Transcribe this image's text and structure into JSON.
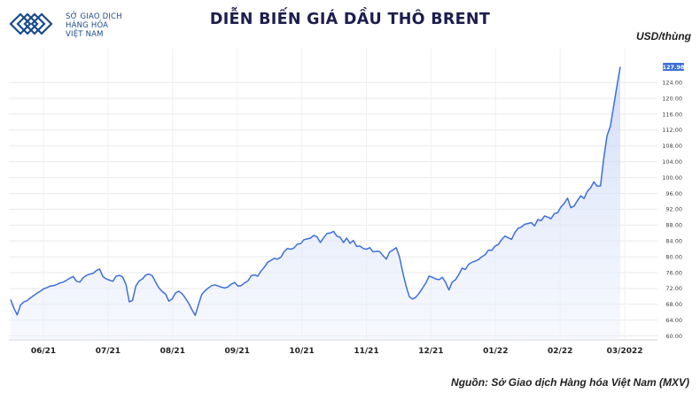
{
  "logo": {
    "icon_name": "mxv-diamond-logo",
    "line1": "SỞ GIAO DỊCH",
    "line2": "HÀNG HÓA",
    "line3": "VIỆT NAM",
    "color": "#1a4b8c"
  },
  "header": {
    "title": "DIỄN BIẾN GIÁ DẦU THÔ BRENT"
  },
  "footer": {
    "source": "Nguồn: Sở Giao dịch Hàng hóa Việt Nam (MXV)"
  },
  "chart_data": {
    "type": "area",
    "title": "DIỄN BIẾN GIÁ DẦU THÔ BRENT",
    "ylabel": "USD/thùng",
    "xlabel": "",
    "ylim": [
      59,
      133
    ],
    "y_ticks": [
      "60.00",
      "64.00",
      "68.00",
      "72.00",
      "76.00",
      "80.00",
      "84.00",
      "88.00",
      "92.00",
      "96.00",
      "100.00",
      "104.00",
      "108.00",
      "112.00",
      "116.00",
      "120.00",
      "124.00"
    ],
    "x_ticks": [
      "06/21",
      "07/21",
      "08/21",
      "09/21",
      "10/21",
      "11/21",
      "12/21",
      "01/22",
      "02/22",
      "03/2022"
    ],
    "last_value_label": "127.98",
    "grid": true,
    "line_color": "#3d6fd9",
    "fill_color": "#dbe4f8",
    "series": [
      {
        "values": [
          69.2,
          67.0,
          65.3,
          67.8,
          68.6,
          68.9,
          69.6,
          70.2,
          70.8,
          71.3,
          71.9,
          72.2,
          72.6,
          72.7,
          73.0,
          73.4,
          73.6,
          74.1,
          74.6,
          75.0,
          73.8,
          73.6,
          74.7,
          75.3,
          75.6,
          75.8,
          76.5,
          76.9,
          75.0,
          74.4,
          74.1,
          73.8,
          75.1,
          75.3,
          74.9,
          73.0,
          68.6,
          69.0,
          72.6,
          73.9,
          74.4,
          75.4,
          75.6,
          75.2,
          73.6,
          72.1,
          71.2,
          70.6,
          68.8,
          69.3,
          70.8,
          71.3,
          70.7,
          69.6,
          68.3,
          66.7,
          65.2,
          67.9,
          70.5,
          71.4,
          72.1,
          72.7,
          72.9,
          72.6,
          72.3,
          72.1,
          72.4,
          73.1,
          73.5,
          72.6,
          72.7,
          73.4,
          73.9,
          75.2,
          75.4,
          75.1,
          76.4,
          77.4,
          78.6,
          79.1,
          79.6,
          79.4,
          79.9,
          81.3,
          82.1,
          81.9,
          82.2,
          83.2,
          83.3,
          84.3,
          84.5,
          84.7,
          85.4,
          85.0,
          83.6,
          84.8,
          85.9,
          86.0,
          86.4,
          85.2,
          84.9,
          83.6,
          84.7,
          83.4,
          84.1,
          82.6,
          82.7,
          82.1,
          81.9,
          82.3,
          81.2,
          81.4,
          81.3,
          80.3,
          79.4,
          81.2,
          81.7,
          82.3,
          80.0,
          76.0,
          72.6,
          69.9,
          69.3,
          69.8,
          70.8,
          72.1,
          73.4,
          75.1,
          74.8,
          74.4,
          74.2,
          74.8,
          73.5,
          71.6,
          73.6,
          74.2,
          75.5,
          77.1,
          76.8,
          78.1,
          78.6,
          78.9,
          79.3,
          80.0,
          80.5,
          81.7,
          81.6,
          82.7,
          83.1,
          84.3,
          85.2,
          84.8,
          84.4,
          86.1,
          87.2,
          87.5,
          88.2,
          88.4,
          88.6,
          87.8,
          89.4,
          89.1,
          90.3,
          90.0,
          89.6,
          90.9,
          91.1,
          92.6,
          93.5,
          94.8,
          92.4,
          92.8,
          94.2,
          95.4,
          94.7,
          96.5,
          97.4,
          98.9,
          97.8,
          97.9,
          104.9,
          110.6,
          112.9,
          118.1,
          123.2,
          127.98
        ]
      }
    ]
  }
}
